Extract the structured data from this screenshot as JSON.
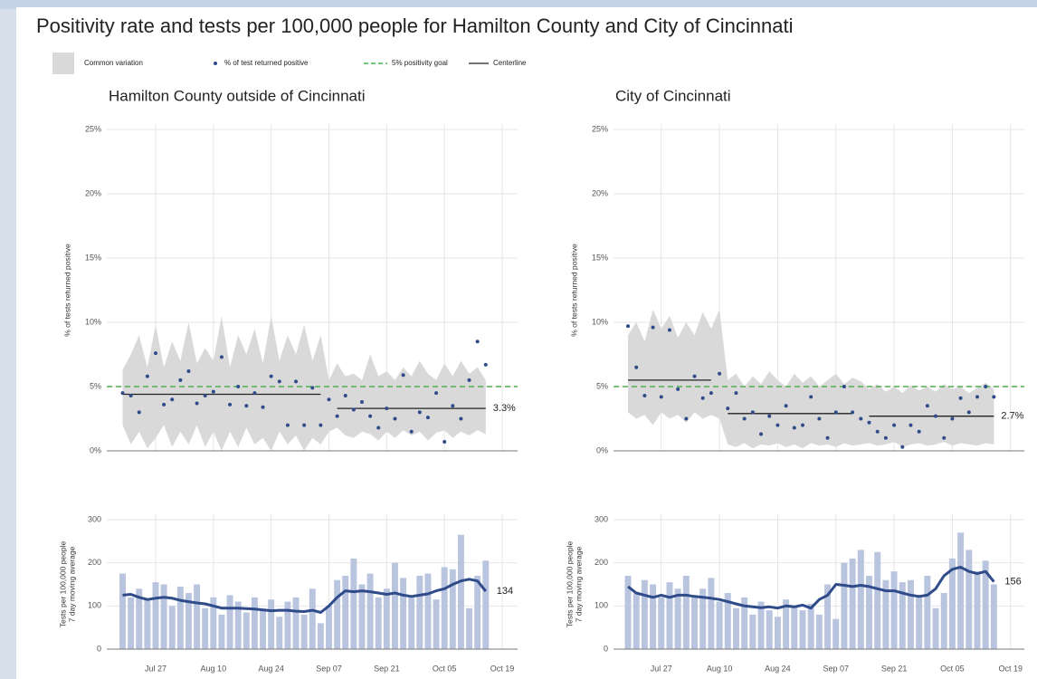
{
  "title": "Positivity rate and tests per 100,000 people for Hamilton County and City of Cincinnati",
  "chart_data": [
    {
      "type": "scatter",
      "title": "Hamilton County outside of Cincinnati",
      "ylabel": "% of tests returned positive",
      "ylim": [
        0,
        25
      ],
      "yticks": [
        {
          "value": 0,
          "label": "0%"
        },
        {
          "value": 5,
          "label": "5%"
        },
        {
          "value": 10,
          "label": "10%"
        },
        {
          "value": 15,
          "label": "15%"
        },
        {
          "value": 20,
          "label": "20%"
        },
        {
          "value": 25,
          "label": "25%"
        }
      ],
      "grid": true,
      "band": {
        "name": "Common variation",
        "color": "#d9d9d9",
        "low": [
          2.0,
          0.5,
          1.5,
          0.2,
          1.0,
          2.0,
          0.3,
          1.5,
          0.5,
          2.0,
          0.3,
          1.5,
          0.0,
          1.5,
          0.3,
          1.8,
          0.5,
          1.0,
          0.0,
          1.5,
          0.5,
          1.2,
          0.0,
          1.0,
          0.5,
          1.5,
          1.8,
          1.2,
          1.0,
          1.5,
          1.3,
          0.8,
          1.5,
          1.0,
          1.6,
          1.2,
          1.5,
          0.8,
          1.4,
          1.6,
          1.0,
          1.5,
          1.2,
          1.6,
          1.3,
          null,
          null
        ],
        "high": [
          6.3,
          7.5,
          9.0,
          6.5,
          9.8,
          6.5,
          8.5,
          7.0,
          10.0,
          6.8,
          8.0,
          7.0,
          10.5,
          6.5,
          9.0,
          7.5,
          9.5,
          6.8,
          10.5,
          7.0,
          9.0,
          7.5,
          9.8,
          7.0,
          9.0,
          5.5,
          6.8,
          5.8,
          6.0,
          5.5,
          7.5,
          5.8,
          6.2,
          5.5,
          6.5,
          5.8,
          7.0,
          6.0,
          5.5,
          6.8,
          5.8,
          7.0,
          6.0,
          6.5,
          5.5,
          null,
          null
        ]
      },
      "series": [
        {
          "name": "% of test returned positive",
          "color": "#2f4b8a",
          "values": [
            4.5,
            4.3,
            3.0,
            5.8,
            7.6,
            3.6,
            4.0,
            5.5,
            6.2,
            3.7,
            4.3,
            4.6,
            7.3,
            3.6,
            5.0,
            3.5,
            4.5,
            3.4,
            5.8,
            5.4,
            2.0,
            5.4,
            2.0,
            4.9,
            2.0,
            4.0,
            2.7,
            4.3,
            3.2,
            3.8,
            2.7,
            1.8,
            3.3,
            2.5,
            5.9,
            1.5,
            3.0,
            2.6,
            4.5,
            0.7,
            3.5,
            2.5,
            5.5,
            8.5,
            6.7,
            null,
            null
          ]
        }
      ],
      "goal": {
        "name": "5% positivity goal",
        "value": 5,
        "color": "#4caf50"
      },
      "centerline": {
        "name": "Centerline",
        "color": "#222222",
        "end_label": "3.3%",
        "values": [
          4.4,
          4.4,
          4.4,
          4.4,
          4.4,
          4.4,
          4.4,
          4.4,
          4.4,
          4.4,
          4.4,
          4.4,
          4.4,
          4.4,
          4.4,
          4.4,
          4.4,
          4.4,
          4.4,
          4.4,
          4.4,
          4.4,
          4.4,
          4.4,
          4.4,
          null,
          3.3,
          3.3,
          3.3,
          3.3,
          3.3,
          3.3,
          3.3,
          3.3,
          3.3,
          3.3,
          3.3,
          3.3,
          3.3,
          3.3,
          3.3,
          3.3,
          3.3,
          3.3,
          3.3,
          null,
          null
        ]
      }
    },
    {
      "type": "scatter",
      "title": "City of Cincinnati",
      "ylabel": "% of tests returned positive",
      "ylim": [
        0,
        25
      ],
      "yticks": [
        {
          "value": 0,
          "label": "0%"
        },
        {
          "value": 5,
          "label": "5%"
        },
        {
          "value": 10,
          "label": "10%"
        },
        {
          "value": 15,
          "label": "15%"
        },
        {
          "value": 20,
          "label": "20%"
        },
        {
          "value": 25,
          "label": "25%"
        }
      ],
      "grid": true,
      "band": {
        "color": "#d9d9d9",
        "low": [
          3.0,
          2.5,
          2.8,
          2.0,
          3.0,
          2.5,
          2.8,
          2.2,
          3.0,
          2.5,
          2.8,
          2.5,
          0.5,
          0.3,
          0.6,
          0.2,
          0.5,
          0.4,
          0.6,
          0.3,
          0.5,
          0.2,
          0.6,
          0.4,
          0.5,
          0.3,
          0.6,
          0.4,
          0.5,
          0.6,
          0.4,
          0.5,
          0.7,
          0.3,
          0.5,
          0.6,
          0.4,
          0.5,
          0.7,
          0.4,
          0.6,
          0.5,
          0.4,
          0.6,
          0.5,
          null,
          null
        ],
        "high": [
          9.0,
          10.0,
          8.5,
          11.0,
          9.5,
          10.5,
          8.8,
          10.0,
          9.0,
          10.8,
          9.5,
          11.0,
          5.5,
          6.0,
          5.0,
          5.8,
          5.2,
          6.2,
          5.5,
          5.0,
          6.0,
          5.3,
          5.8,
          5.0,
          5.5,
          6.0,
          5.2,
          5.7,
          5.4,
          4.8,
          5.2,
          4.6,
          5.0,
          4.5,
          5.1,
          4.7,
          5.0,
          4.6,
          5.2,
          4.8,
          5.0,
          4.5,
          4.9,
          5.3,
          4.8,
          null,
          null
        ]
      },
      "series": [
        {
          "color": "#2f4b8a",
          "values": [
            9.7,
            6.5,
            4.3,
            9.6,
            4.2,
            9.4,
            4.8,
            2.5,
            5.8,
            4.1,
            4.5,
            6.0,
            3.3,
            4.5,
            2.5,
            3.0,
            1.3,
            2.7,
            2.0,
            3.5,
            1.8,
            2.0,
            4.2,
            2.5,
            1.0,
            3.0,
            5.0,
            3.0,
            2.5,
            2.2,
            1.5,
            1.0,
            2.0,
            0.3,
            2.0,
            1.5,
            3.5,
            2.7,
            1.0,
            2.5,
            4.1,
            3.0,
            4.2,
            5.0,
            4.2,
            null,
            null
          ]
        }
      ],
      "goal": {
        "value": 5,
        "color": "#4caf50"
      },
      "centerline": {
        "color": "#222222",
        "end_label": "2.7%",
        "values": [
          5.5,
          5.5,
          5.5,
          5.5,
          5.5,
          5.5,
          5.5,
          5.5,
          5.5,
          5.5,
          5.5,
          null,
          2.9,
          2.9,
          2.9,
          2.9,
          2.9,
          2.9,
          2.9,
          2.9,
          2.9,
          2.9,
          2.9,
          2.9,
          2.9,
          2.9,
          2.9,
          2.9,
          null,
          2.7,
          2.7,
          2.7,
          2.7,
          2.7,
          2.7,
          2.7,
          2.7,
          2.7,
          2.7,
          2.7,
          2.7,
          2.7,
          2.7,
          2.7,
          2.7,
          null,
          null
        ]
      }
    },
    {
      "type": "bar",
      "ylabel": [
        "Tests per 100,000 people",
        "7 day moving average"
      ],
      "categories": [
        null,
        null,
        null,
        null,
        "Jul 27",
        null,
        null,
        null,
        null,
        null,
        null,
        "Aug 10",
        null,
        null,
        null,
        null,
        null,
        null,
        "Aug 24",
        null,
        null,
        null,
        null,
        null,
        null,
        "Sep 07",
        null,
        null,
        null,
        null,
        null,
        null,
        "Sep 21",
        null,
        null,
        null,
        null,
        null,
        null,
        "Oct 05",
        null,
        null,
        null,
        null,
        null,
        null,
        "Oct 19"
      ],
      "ylim": [
        0,
        300
      ],
      "yticks": [
        0,
        100,
        200,
        300
      ],
      "grid": true,
      "bars": {
        "color": "#b9c5df",
        "values": [
          175,
          120,
          140,
          115,
          155,
          150,
          100,
          145,
          130,
          150,
          95,
          120,
          80,
          125,
          110,
          85,
          120,
          90,
          115,
          75,
          110,
          120,
          80,
          140,
          60,
          100,
          160,
          170,
          210,
          150,
          175,
          120,
          140,
          200,
          165,
          120,
          170,
          175,
          115,
          190,
          185,
          265,
          95,
          170,
          205,
          null,
          null
        ]
      },
      "line": {
        "color": "#2f4b8a",
        "values": [
          125,
          127,
          120,
          115,
          118,
          120,
          118,
          113,
          110,
          107,
          105,
          100,
          95,
          95,
          95,
          94,
          93,
          91,
          89,
          90,
          90,
          88,
          87,
          90,
          85,
          100,
          120,
          135,
          133,
          135,
          133,
          130,
          127,
          130,
          125,
          122,
          125,
          128,
          135,
          140,
          150,
          158,
          162,
          158,
          134,
          null,
          null
        ]
      }
    },
    {
      "type": "bar",
      "ylabel": [
        "Tests per 100,000 people",
        "7 day moving average"
      ],
      "categories": [
        null,
        null,
        null,
        null,
        "Jul 27",
        null,
        null,
        null,
        null,
        null,
        null,
        "Aug 10",
        null,
        null,
        null,
        null,
        null,
        null,
        "Aug 24",
        null,
        null,
        null,
        null,
        null,
        null,
        "Sep 07",
        null,
        null,
        null,
        null,
        null,
        null,
        "Sep 21",
        null,
        null,
        null,
        null,
        null,
        null,
        "Oct 05",
        null,
        null,
        null,
        null,
        null,
        null,
        "Oct 19"
      ],
      "ylim": [
        0,
        300
      ],
      "yticks": [
        0,
        100,
        200,
        300
      ],
      "grid": true,
      "bars": {
        "color": "#b9c5df",
        "values": [
          170,
          130,
          160,
          150,
          120,
          155,
          140,
          170,
          120,
          140,
          165,
          110,
          130,
          95,
          120,
          80,
          110,
          90,
          75,
          115,
          100,
          90,
          105,
          80,
          150,
          70,
          200,
          210,
          230,
          170,
          225,
          160,
          180,
          155,
          160,
          120,
          170,
          95,
          130,
          210,
          270,
          230,
          180,
          205,
          150,
          null,
          null
        ]
      },
      "line": {
        "color": "#2f4b8a",
        "values": [
          145,
          130,
          125,
          120,
          125,
          120,
          125,
          125,
          122,
          120,
          118,
          115,
          110,
          105,
          100,
          98,
          96,
          98,
          95,
          100,
          98,
          102,
          95,
          115,
          125,
          150,
          148,
          145,
          148,
          145,
          140,
          135,
          135,
          130,
          125,
          122,
          125,
          140,
          170,
          185,
          190,
          180,
          175,
          180,
          156,
          null,
          null
        ]
      }
    }
  ]
}
